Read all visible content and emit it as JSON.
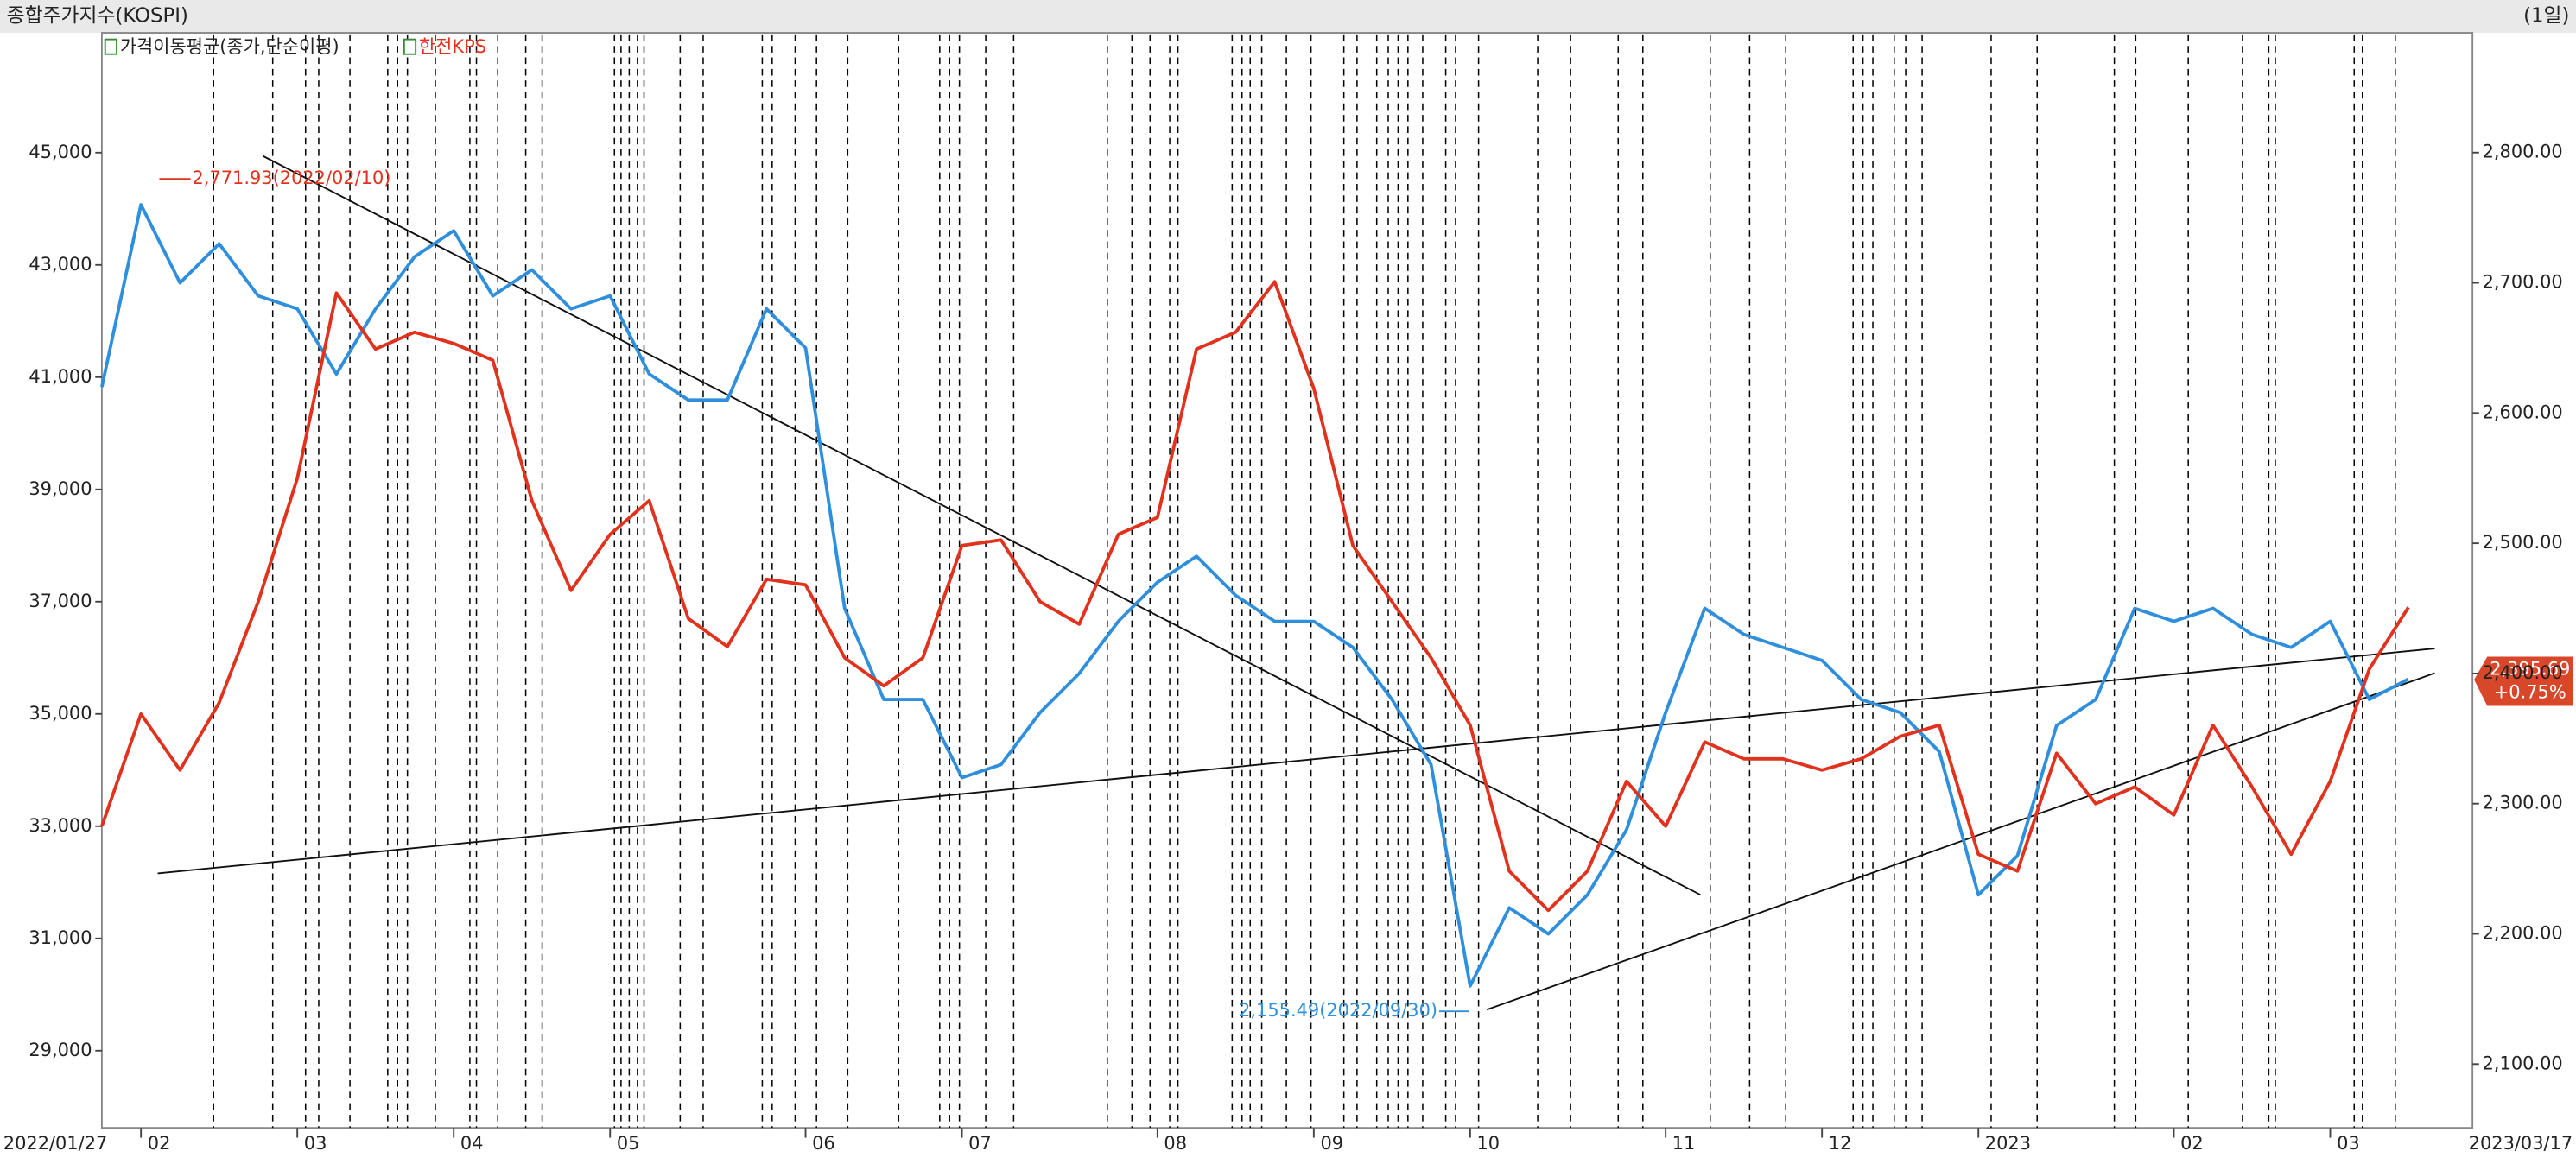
{
  "chart_data": {
    "type": "line",
    "title": "종합주가지수(KOSPI)",
    "period": "(1일)",
    "categories": [
      "2022/01/27",
      "02",
      null,
      null,
      null,
      "03",
      null,
      null,
      null,
      "04",
      null,
      null,
      null,
      "05",
      null,
      null,
      null,
      null,
      "06",
      null,
      null,
      null,
      "07",
      null,
      null,
      null,
      null,
      "08",
      null,
      null,
      null,
      "09",
      null,
      null,
      null,
      "10",
      null,
      null,
      null,
      null,
      "11",
      null,
      null,
      null,
      "12",
      null,
      null,
      null,
      "2023",
      null,
      null,
      null,
      null,
      "02",
      null,
      null,
      null,
      "03",
      null,
      "2023/03/17"
    ],
    "series": [
      {
        "name": "가격이동평균(종가,단순이평)",
        "color": "#2f8fdc",
        "axis": "y2",
        "values": [
          2620,
          2760,
          2700,
          2730,
          2690,
          2680,
          2630,
          2680,
          2720,
          2740,
          2690,
          2710,
          2680,
          2690,
          2630,
          2610,
          2610,
          2680,
          2650,
          2450,
          2380,
          2380,
          2320,
          2330,
          2370,
          2400,
          2440,
          2470,
          2490,
          2460,
          2440,
          2440,
          2420,
          2380,
          2330,
          2160,
          2220,
          2200,
          2230,
          2280,
          2370,
          2450,
          2430,
          2420,
          2410,
          2380,
          2370,
          2340,
          2230,
          2260,
          2360,
          2380,
          2450,
          2440,
          2450,
          2430,
          2420,
          2440,
          2380,
          2395.69
        ]
      },
      {
        "name": "한전KPS",
        "color": "#e0321c",
        "axis": "y",
        "values": [
          33000,
          35000,
          34000,
          35200,
          37000,
          39200,
          42500,
          41500,
          41800,
          41600,
          41300,
          38800,
          37200,
          38200,
          38800,
          36700,
          36200,
          37400,
          37300,
          36000,
          35500,
          36000,
          38000,
          38100,
          37000,
          36600,
          38200,
          38500,
          41500,
          41800,
          42700,
          40800,
          38000,
          37000,
          36000,
          34800,
          32200,
          31500,
          32200,
          33800,
          33000,
          34500,
          34200,
          34200,
          34000,
          34200,
          34600,
          34800,
          32500,
          32200,
          34300,
          33400,
          33700,
          33200,
          34800,
          33700,
          32500,
          33800,
          35800,
          36900
        ]
      }
    ],
    "ylim": [
      27625,
      47135
    ],
    "yticks": [
      {
        "value": 29000,
        "label": "29,000"
      },
      {
        "value": 31000,
        "label": "31,000"
      },
      {
        "value": 33000,
        "label": "33,000"
      },
      {
        "value": 35000,
        "label": "35,000"
      },
      {
        "value": 37000,
        "label": "37,000"
      },
      {
        "value": 39000,
        "label": "39,000"
      },
      {
        "value": 41000,
        "label": "41,000"
      },
      {
        "value": 43000,
        "label": "43,000"
      },
      {
        "value": 45000,
        "label": "45,000"
      }
    ],
    "y2lim": [
      2051,
      2892
    ],
    "y2ticks": [
      {
        "value": 2100,
        "label": "2,100.00"
      },
      {
        "value": 2200,
        "label": "2,200.00"
      },
      {
        "value": 2300,
        "label": "2,300.00"
      },
      {
        "value": 2400,
        "label": "2,400.00"
      },
      {
        "value": 2500,
        "label": "2,500.00"
      },
      {
        "value": 2600,
        "label": "2,600.00"
      },
      {
        "value": 2700,
        "label": "2,700.00"
      },
      {
        "value": 2800,
        "label": "2,800.00"
      }
    ],
    "annotations": [
      "2,771.93(2022/02/10)",
      "2,155.49(2022/09/30)"
    ],
    "last_value_label": "2,395.69",
    "change_label": "+0.75%"
  }
}
